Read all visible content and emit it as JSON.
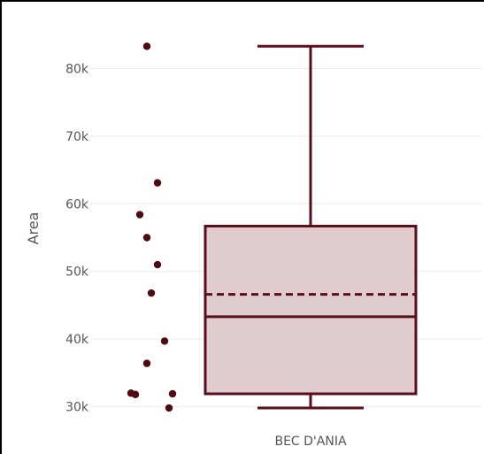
{
  "chart_data": {
    "type": "box",
    "title": "",
    "xlabel": "",
    "ylabel": "Area",
    "ylim": [
      28500,
      85500
    ],
    "yticks": [
      30000,
      40000,
      50000,
      60000,
      70000,
      80000
    ],
    "ytick_labels": [
      "30k",
      "40k",
      "50k",
      "60k",
      "70k",
      "80k"
    ],
    "grid": "horizontal",
    "categories": [
      "BEC D'ANIA"
    ],
    "box": {
      "category": "BEC D'ANIA",
      "min": 29800,
      "q1": 31900,
      "median": 43300,
      "mean": 46600,
      "q3": 56700,
      "max": 83300
    },
    "points": [
      83300,
      63100,
      58400,
      55000,
      51000,
      46800,
      39700,
      36400,
      32000,
      31800,
      31900,
      29800
    ],
    "colors": {
      "stroke": "#5a0e1a",
      "box_fill": "#e0ccce",
      "point": "#4d0a12",
      "grid": "#ebebeb"
    }
  }
}
